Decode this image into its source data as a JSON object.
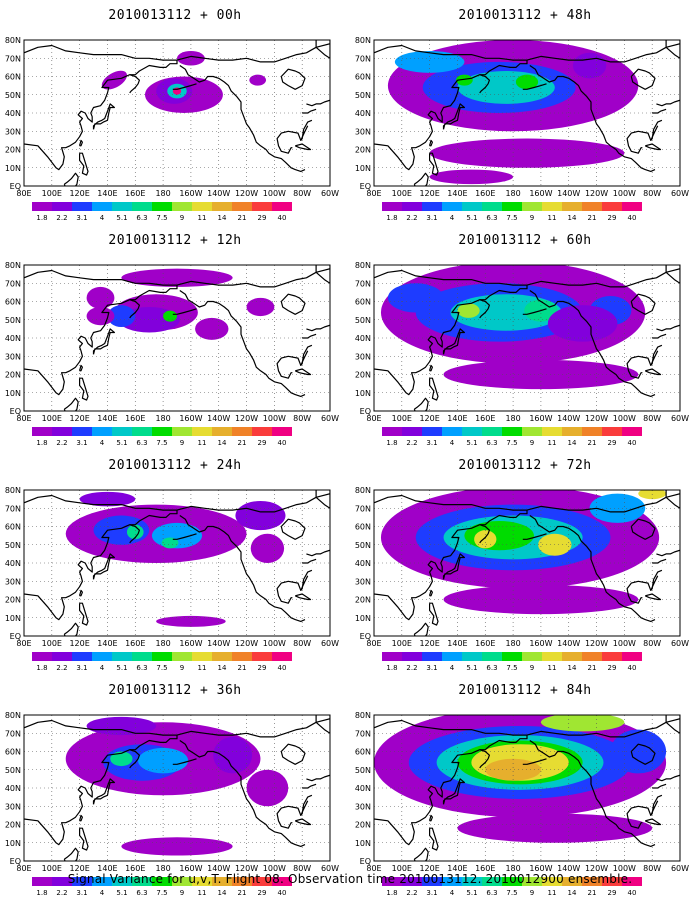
{
  "caption": "Signal Variance for u,v,T. Flight 08. Observation time 2010013112. 2010012900 ensemble.",
  "lat_labels": [
    "80N",
    "70N",
    "60N",
    "50N",
    "40N",
    "30N",
    "20N",
    "10N",
    "EQ"
  ],
  "lon_labels": [
    "80E",
    "100E",
    "120E",
    "140E",
    "160E",
    "180",
    "160W",
    "140W",
    "120W",
    "100W",
    "80W",
    "60W"
  ],
  "map_domain": {
    "lon_min": 80,
    "lon_max": 300,
    "lat_min": 0,
    "lat_max": 80
  },
  "legend": {
    "values": [
      "1.8",
      "2.2",
      "3.1",
      "4",
      "5.1",
      "6.3",
      "7.5",
      "9",
      "11",
      "14",
      "21",
      "29",
      "40"
    ],
    "colors": [
      "#a000c8",
      "#8200dc",
      "#1e3cff",
      "#00a0ff",
      "#00c8c8",
      "#00dc8c",
      "#00dc00",
      "#a0e632",
      "#e6dc32",
      "#e6af2d",
      "#f08228",
      "#fa3c3c",
      "#f00082"
    ]
  },
  "panels": [
    {
      "title": "2010013112 + 00h",
      "hours": 0
    },
    {
      "title": "2010013112 + 48h",
      "hours": 48
    },
    {
      "title": "2010013112 + 12h",
      "hours": 12
    },
    {
      "title": "2010013112 + 60h",
      "hours": 60
    },
    {
      "title": "2010013112 + 24h",
      "hours": 24
    },
    {
      "title": "2010013112 + 72h",
      "hours": 72
    },
    {
      "title": "2010013112 + 36h",
      "hours": 36
    },
    {
      "title": "2010013112 + 84h",
      "hours": 84
    }
  ]
}
